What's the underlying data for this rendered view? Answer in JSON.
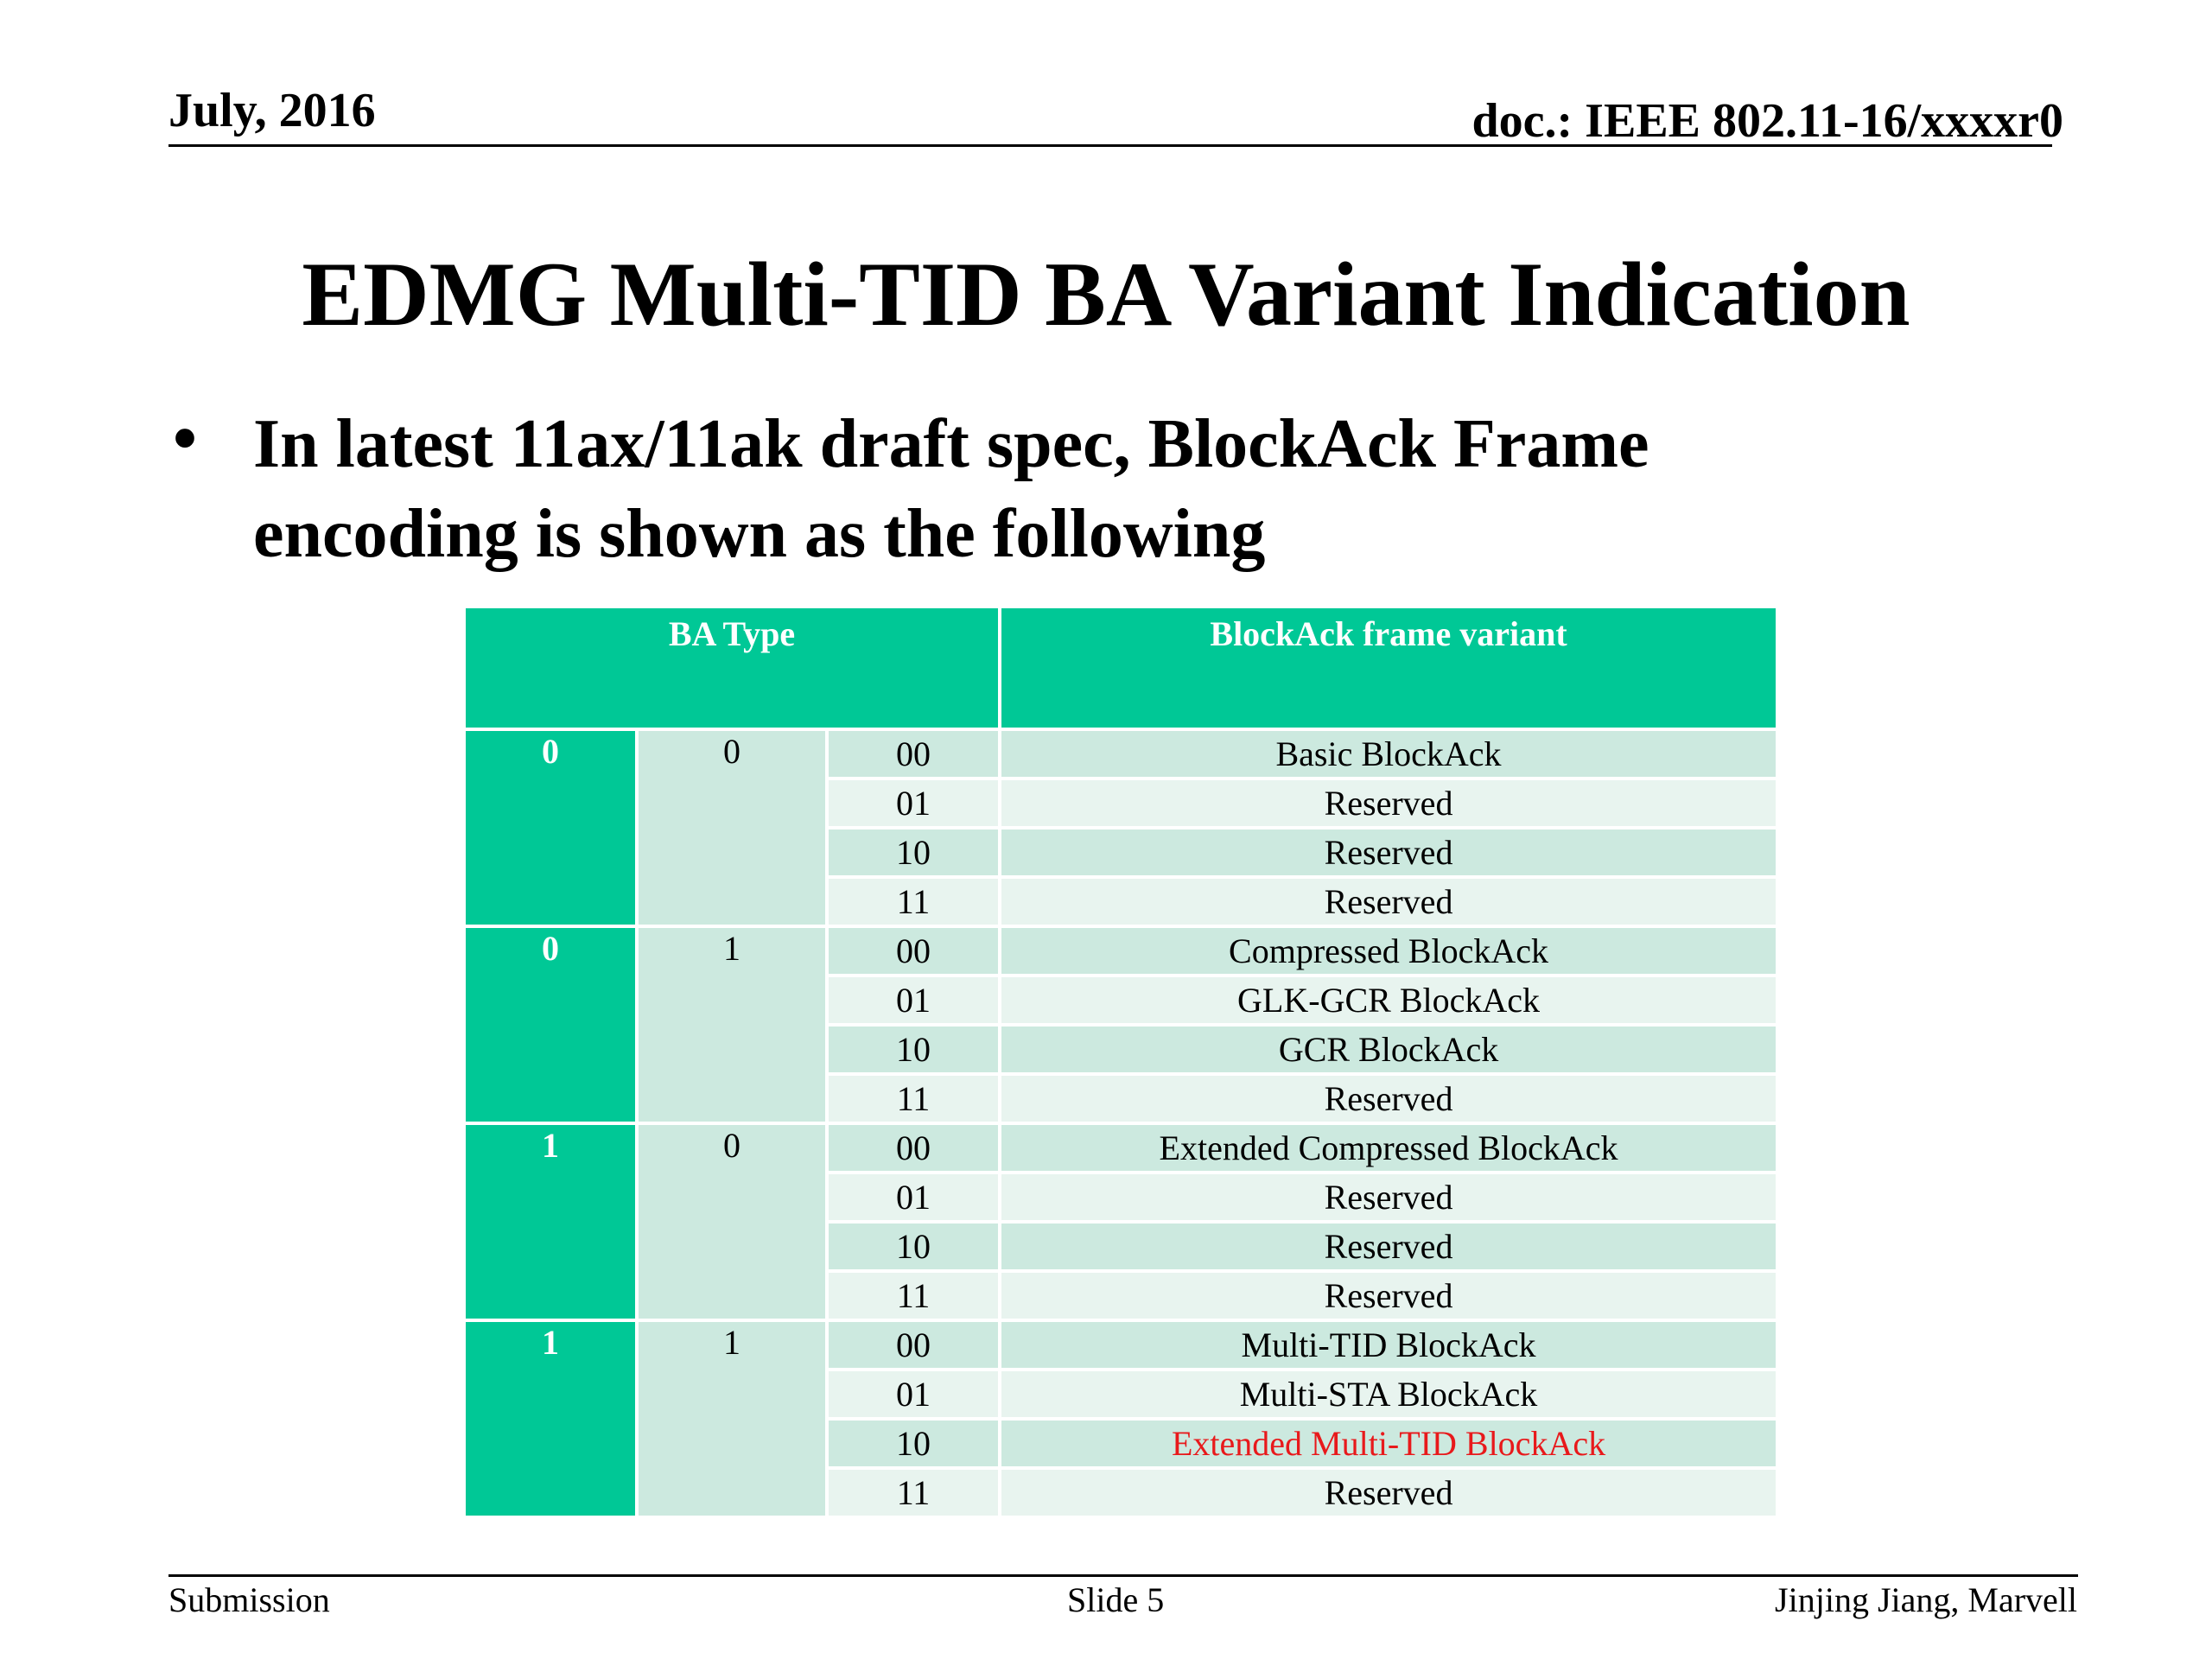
{
  "header": {
    "date": "July, 2016",
    "doc_id": "doc.: IEEE 802.11-16/xxxxr0"
  },
  "slide": {
    "title": "EDMG Multi-TID BA Variant Indication",
    "bullet_symbol": "•",
    "bullet_text": "In latest 11ax/11ak draft spec, BlockAck Frame encoding is shown as the following"
  },
  "table": {
    "headers": [
      "BA Type",
      "BlockAck frame variant"
    ],
    "groups": [
      {
        "bit1": "0",
        "bit2": "0",
        "rows": [
          {
            "code": "00",
            "variant": "Basic BlockAck"
          },
          {
            "code": "01",
            "variant": "Reserved"
          },
          {
            "code": "10",
            "variant": "Reserved"
          },
          {
            "code": "11",
            "variant": "Reserved"
          }
        ]
      },
      {
        "bit1": "0",
        "bit2": "1",
        "rows": [
          {
            "code": "00",
            "variant": "Compressed BlockAck"
          },
          {
            "code": "01",
            "variant": "GLK-GCR BlockAck"
          },
          {
            "code": "10",
            "variant": "GCR BlockAck"
          },
          {
            "code": "11",
            "variant": "Reserved"
          }
        ]
      },
      {
        "bit1": "1",
        "bit2": "0",
        "rows": [
          {
            "code": "00",
            "variant": "Extended Compressed BlockAck"
          },
          {
            "code": "01",
            "variant": "Reserved"
          },
          {
            "code": "10",
            "variant": "Reserved"
          },
          {
            "code": "11",
            "variant": "Reserved"
          }
        ]
      },
      {
        "bit1": "1",
        "bit2": "1",
        "rows": [
          {
            "code": "00",
            "variant": "Multi-TID BlockAck"
          },
          {
            "code": "01",
            "variant": "Multi-STA BlockAck"
          },
          {
            "code": "10",
            "variant": "Extended Multi-TID BlockAck",
            "highlight": true
          },
          {
            "code": "11",
            "variant": "Reserved"
          }
        ]
      }
    ],
    "colors": {
      "header_bg": "#00c896",
      "bit1_bg": "#00c896",
      "dark_row_bg": "#cce9df",
      "light_row_bg": "#e8f4ef",
      "highlight_text": "#e8191b"
    }
  },
  "footer": {
    "left": "Submission",
    "center": "Slide 5",
    "right": "Jinjing Jiang, Marvell"
  }
}
